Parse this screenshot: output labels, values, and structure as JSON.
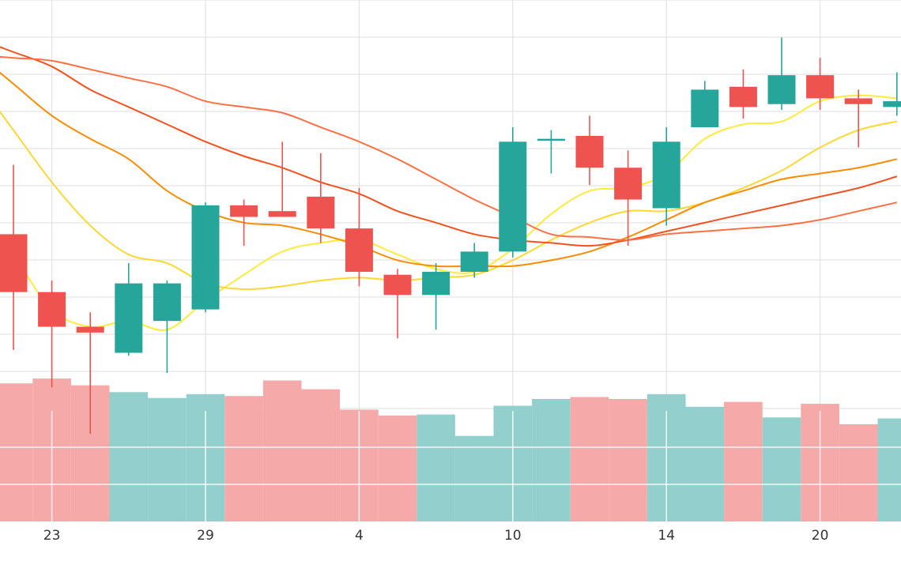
{
  "chart_data": {
    "type": "candlestick",
    "grid": true,
    "x_tick_labels": [
      {
        "index": 1,
        "label": "23"
      },
      {
        "index": 5,
        "label": "29"
      },
      {
        "index": 9,
        "label": "4"
      },
      {
        "index": 13,
        "label": "10"
      },
      {
        "index": 17,
        "label": "14"
      },
      {
        "index": 21,
        "label": "20"
      }
    ],
    "price_range": [
      -43,
      54
    ],
    "volume_range": [
      0,
      19.5
    ],
    "colors": {
      "up": "#26a69a",
      "down": "#ef5350",
      "volume_up": "#93cfcd",
      "volume_down": "#f5a9a8",
      "grid": "#e3e3e3",
      "ma": [
        "#ffeb3b",
        "#fdd835",
        "#fb8c00",
        "#f4511e",
        "#ff7043"
      ]
    },
    "candles": [
      {
        "open": 13.5,
        "high": 25.5,
        "low": -6.5,
        "close": 3.5,
        "volume": 14.2
      },
      {
        "open": 3.5,
        "high": 5.5,
        "low": -13,
        "close": -2.5,
        "volume": 14.7
      },
      {
        "open": -2.5,
        "high": 0,
        "low": -21,
        "close": -3.5,
        "volume": 14.0
      },
      {
        "open": -7,
        "high": 8.5,
        "low": -7.5,
        "close": 5,
        "volume": 13.3
      },
      {
        "open": -1.5,
        "high": 5.5,
        "low": -10.5,
        "close": 5,
        "volume": 12.7
      },
      {
        "open": 0.5,
        "high": 19,
        "low": 0,
        "close": 18.5,
        "volume": 13.1
      },
      {
        "open": 18.5,
        "high": 19.5,
        "low": 11.5,
        "close": 16.5,
        "volume": 12.9
      },
      {
        "open": 17.5,
        "high": 29.5,
        "low": 16.5,
        "close": 16.5,
        "volume": 14.5
      },
      {
        "open": 20,
        "high": 27.5,
        "low": 12,
        "close": 14.5,
        "volume": 13.6
      },
      {
        "open": 14.5,
        "high": 21.5,
        "low": 4.5,
        "close": 7,
        "volume": 11.5
      },
      {
        "open": 6.5,
        "high": 7.5,
        "low": -4.5,
        "close": 3,
        "volume": 10.9
      },
      {
        "open": 3,
        "high": 8.5,
        "low": -3,
        "close": 7,
        "volume": 11.0
      },
      {
        "open": 7,
        "high": 12,
        "low": 6,
        "close": 10.5,
        "volume": 8.8
      },
      {
        "open": 10.5,
        "high": 32,
        "low": 9.5,
        "close": 29.5,
        "volume": 11.9
      },
      {
        "open": 30,
        "high": 31.5,
        "low": 24,
        "close": 30,
        "volume": 12.6
      },
      {
        "open": 30.5,
        "high": 34,
        "low": 22,
        "close": 25,
        "volume": 12.8
      },
      {
        "open": 25,
        "high": 28,
        "low": 11.5,
        "close": 19.5,
        "volume": 12.6
      },
      {
        "open": 18,
        "high": 32,
        "low": 15,
        "close": 29.5,
        "volume": 13.1
      },
      {
        "open": 32,
        "high": 40,
        "low": 32,
        "close": 38.5,
        "volume": 11.8
      },
      {
        "open": 39,
        "high": 42,
        "low": 33.5,
        "close": 35.5,
        "volume": 12.3
      },
      {
        "open": 36,
        "high": 47.5,
        "low": 35,
        "close": 41,
        "volume": 10.7
      },
      {
        "open": 41,
        "high": 44,
        "low": 35,
        "close": 37,
        "volume": 12.1
      },
      {
        "open": 37,
        "high": 38.5,
        "low": 28.5,
        "close": 36,
        "volume": 10.0
      },
      {
        "open": 35.5,
        "high": 41.5,
        "low": 34,
        "close": 36.5,
        "volume": 10.6
      }
    ],
    "moving_averages": [
      {
        "values": [
          10,
          0.5,
          -2.5,
          -1.5,
          -3,
          2,
          6.5,
          10.5,
          12,
          12.5,
          10,
          7.5,
          7,
          11,
          17,
          21,
          21.5,
          24,
          30,
          32.5,
          33,
          36.5,
          37.5,
          37
        ]
      },
      {
        "values": [
          31.5,
          22.5,
          15,
          10,
          8.5,
          5,
          4,
          4.5,
          5.5,
          6,
          5.5,
          6,
          6.5,
          9,
          12.5,
          15.5,
          17.5,
          17.5,
          19,
          21.5,
          24.5,
          28.5,
          31.5,
          33
        ]
      },
      {
        "values": [
          39.5,
          34,
          30,
          26.5,
          21,
          17.5,
          15.5,
          15,
          13.5,
          11.5,
          9,
          8,
          8,
          8,
          9,
          10.5,
          13,
          16,
          19,
          21,
          23,
          24,
          25,
          26.5
        ]
      },
      {
        "values": [
          45,
          42.5,
          38.5,
          35.5,
          32.5,
          29.5,
          27,
          25,
          22.5,
          20.5,
          17.5,
          15.5,
          13.5,
          12.5,
          12,
          11.5,
          12.5,
          14,
          15.5,
          17,
          18.5,
          20,
          21.5,
          23.5
        ]
      },
      {
        "values": [
          44,
          43.5,
          42,
          40.5,
          39,
          36.5,
          35.5,
          34.5,
          32,
          29.5,
          26.5,
          23,
          19.5,
          16.5,
          13.5,
          13,
          12.5,
          13.5,
          14,
          14.5,
          15,
          16,
          17.5,
          19
        ]
      }
    ]
  }
}
